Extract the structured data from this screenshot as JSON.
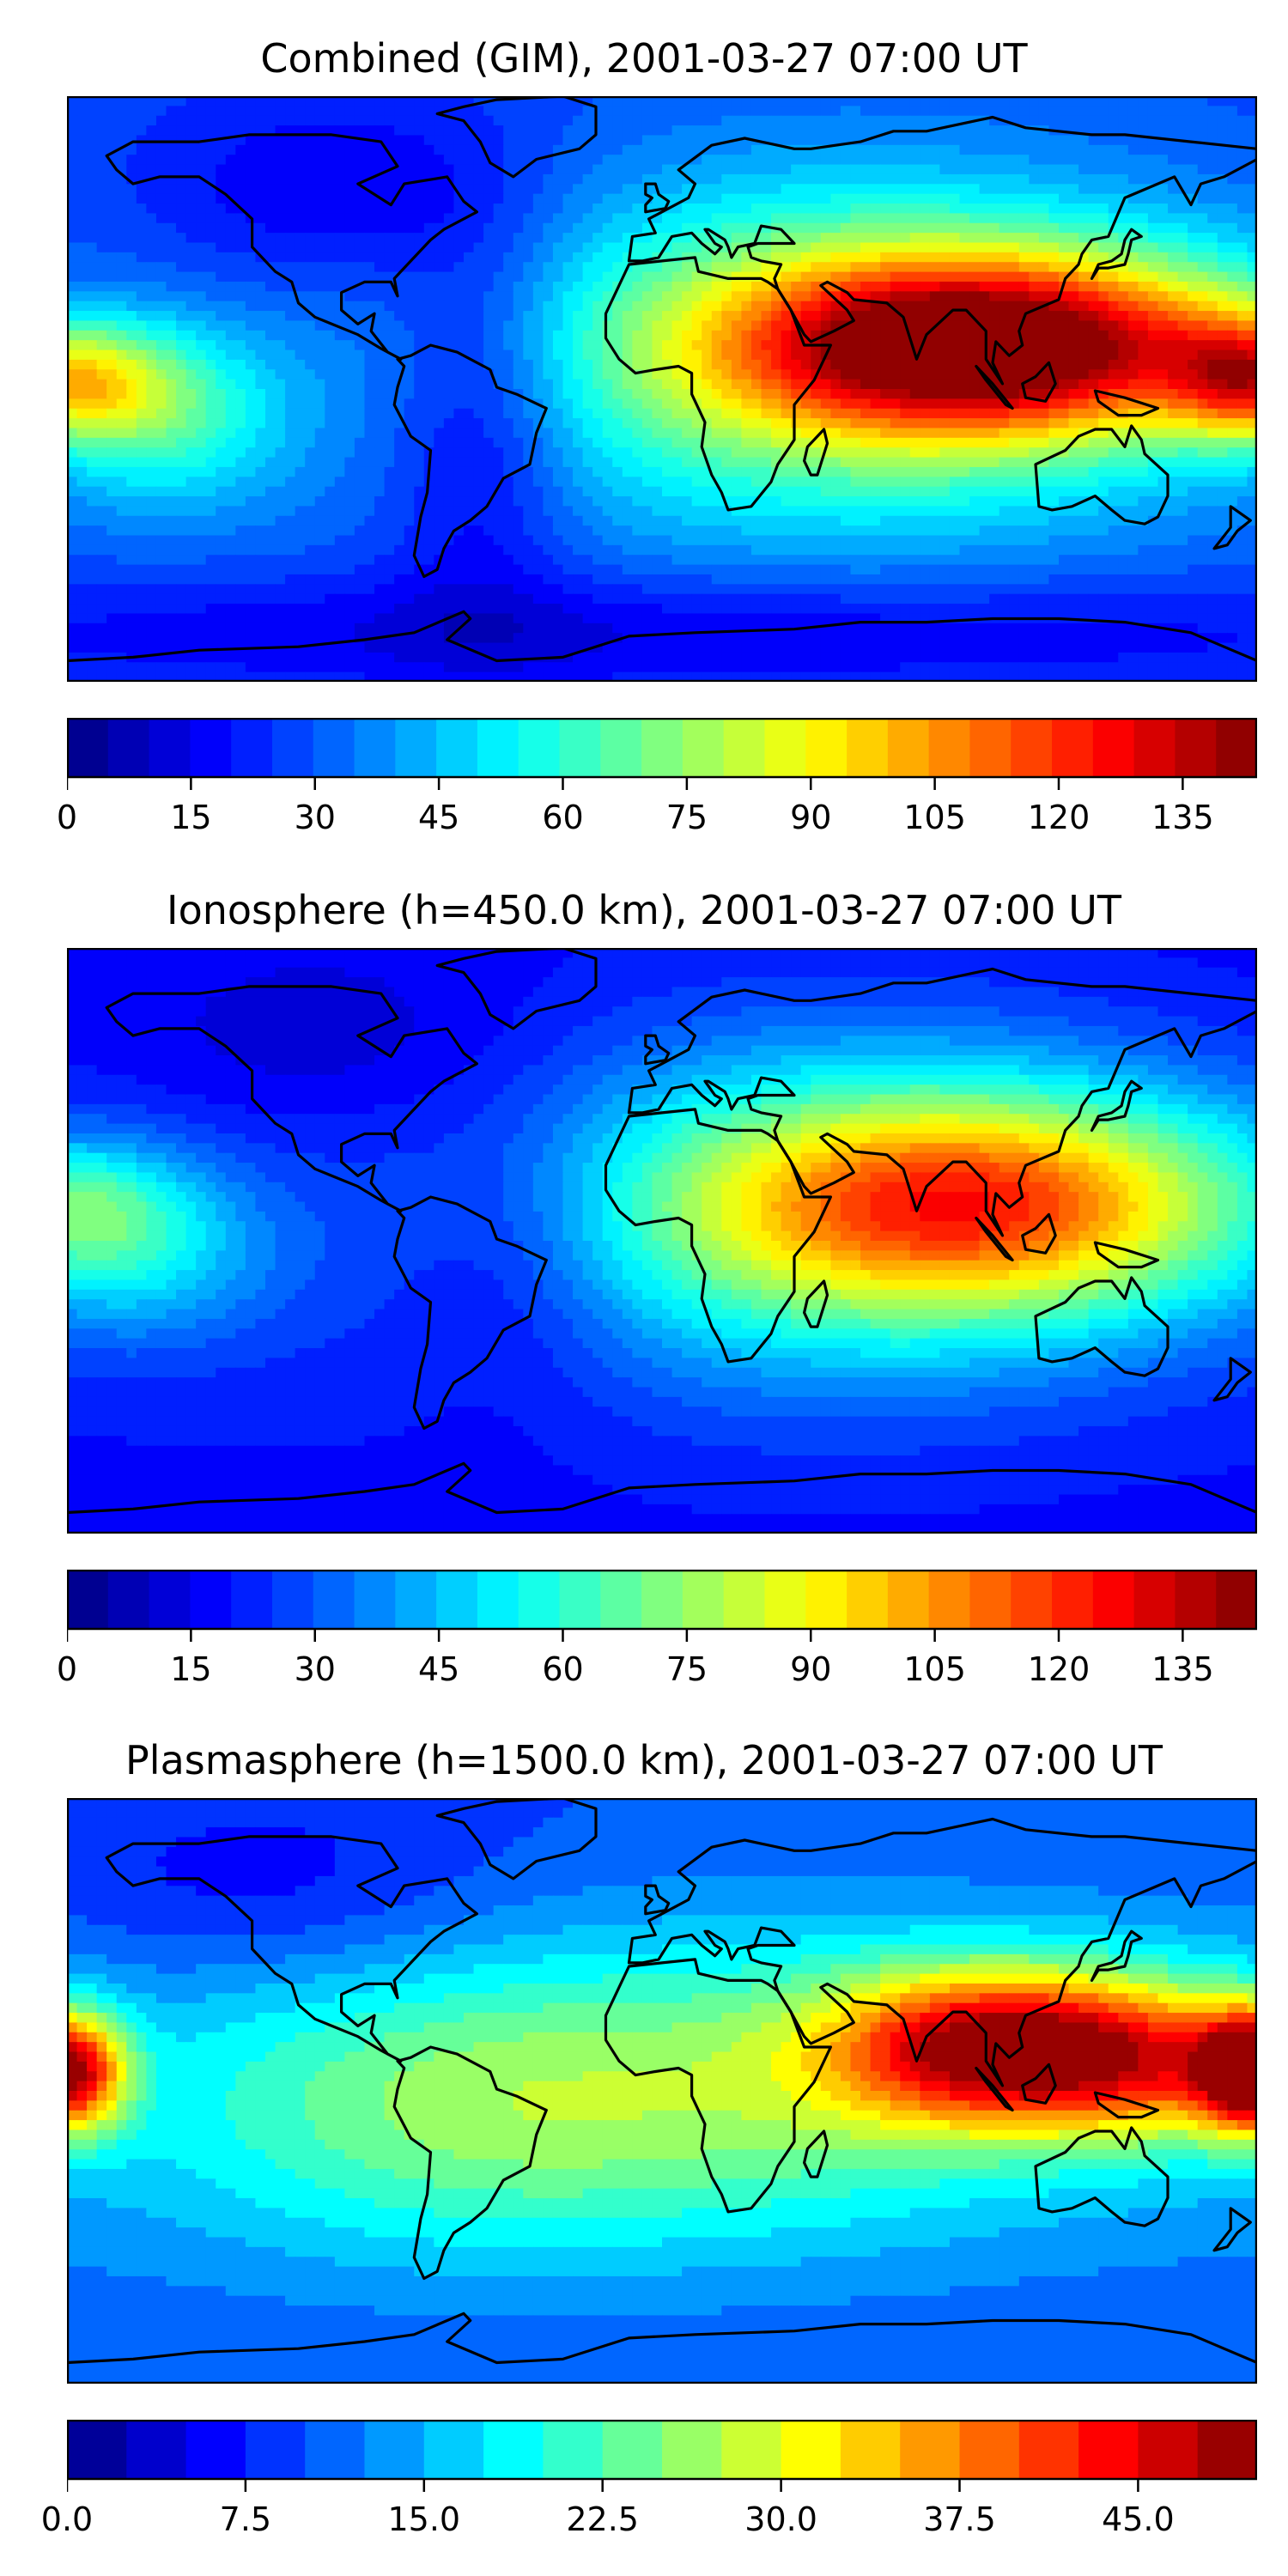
{
  "panels": [
    {
      "title": "Combined (GIM), 2001-03-27 07:00 UT",
      "colorbar": {
        "min": 0,
        "max": 144,
        "levels": 29,
        "ticks": [
          "0",
          "15",
          "30",
          "45",
          "60",
          "75",
          "90",
          "105",
          "120",
          "135"
        ],
        "tick_values": [
          0,
          15,
          30,
          45,
          60,
          75,
          90,
          105,
          120,
          135
        ]
      },
      "field": {
        "base": 28,
        "blobs": [
          {
            "lon": 102,
            "lat": 12,
            "amp": 100,
            "slon": 55,
            "slat": 18
          },
          {
            "lon": 55,
            "lat": 10,
            "amp": 45,
            "slon": 70,
            "slat": 35
          },
          {
            "lon": -180,
            "lat": 2,
            "amp": 55,
            "slon": 20,
            "slat": 12
          },
          {
            "lon": 180,
            "lat": 2,
            "amp": 65,
            "slon": 18,
            "slat": 12
          },
          {
            "lon": -150,
            "lat": -8,
            "amp": 30,
            "slon": 25,
            "slat": 18
          },
          {
            "lon": -55,
            "lat": -10,
            "amp": -20,
            "slon": 20,
            "slat": 40
          },
          {
            "lon": -100,
            "lat": 55,
            "amp": -15,
            "slon": 40,
            "slat": 20
          },
          {
            "lon": 0,
            "lat": -70,
            "amp": -15,
            "slon": 180,
            "slat": 12
          }
        ]
      }
    },
    {
      "title": "Ionosphere  (h=450.0 km), 2001-03-27 07:00 UT",
      "colorbar": {
        "min": 0,
        "max": 144,
        "levels": 29,
        "ticks": [
          "0",
          "15",
          "30",
          "45",
          "60",
          "75",
          "90",
          "105",
          "120",
          "135"
        ],
        "tick_values": [
          0,
          15,
          30,
          45,
          60,
          75,
          90,
          105,
          120,
          135
        ]
      },
      "field": {
        "base": 18,
        "blobs": [
          {
            "lon": 100,
            "lat": 10,
            "amp": 72,
            "slon": 60,
            "slat": 22
          },
          {
            "lon": 50,
            "lat": 8,
            "amp": 38,
            "slon": 70,
            "slat": 35
          },
          {
            "lon": -180,
            "lat": 10,
            "amp": 35,
            "slon": 25,
            "slat": 14
          },
          {
            "lon": -160,
            "lat": -5,
            "amp": 25,
            "slon": 30,
            "slat": 18
          },
          {
            "lon": -45,
            "lat": -5,
            "amp": -12,
            "slon": 25,
            "slat": 30
          },
          {
            "lon": -100,
            "lat": 55,
            "amp": -8,
            "slon": 40,
            "slat": 18
          }
        ]
      }
    },
    {
      "title": "Plasmasphere (h=1500.0 km), 2001-03-27 07:00 UT",
      "colorbar": {
        "min": 0,
        "max": 50,
        "levels": 20,
        "ticks": [
          "0.0",
          "7.5",
          "15.0",
          "22.5",
          "30.0",
          "37.5",
          "45.0"
        ],
        "tick_values": [
          0,
          7.5,
          15,
          22.5,
          30,
          37.5,
          45
        ]
      },
      "field": {
        "base": 10,
        "blobs": [
          {
            "lon": 100,
            "lat": 12,
            "amp": 30,
            "slon": 35,
            "slat": 16
          },
          {
            "lon": 150,
            "lat": 8,
            "amp": 18,
            "slon": 30,
            "slat": 16
          },
          {
            "lon": 180,
            "lat": 5,
            "amp": 35,
            "slon": 12,
            "slat": 12
          },
          {
            "lon": -180,
            "lat": 5,
            "amp": 35,
            "slon": 12,
            "slat": 12
          },
          {
            "lon": -60,
            "lat": -5,
            "amp": 10,
            "slon": 60,
            "slat": 30
          },
          {
            "lon": 40,
            "lat": 0,
            "amp": 8,
            "slon": 60,
            "slat": 30
          },
          {
            "lon": -120,
            "lat": 55,
            "amp": -5,
            "slon": 50,
            "slat": 20
          }
        ]
      }
    }
  ]
}
